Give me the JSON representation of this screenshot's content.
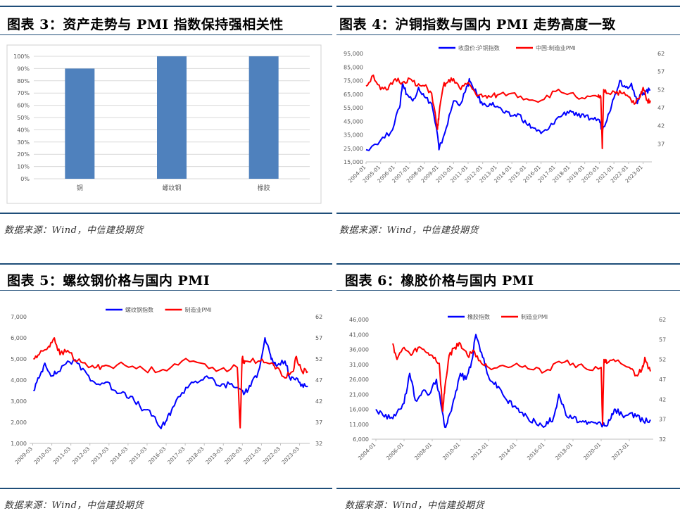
{
  "panels": [
    {
      "title": "图表 3：资产走势与 PMI 指数保持强相关性",
      "source": "数据来源：Wind，中信建投期货"
    },
    {
      "title": "图表 4：沪铜指数与国内 PMI 走势高度一致",
      "source": "数据来源：Wind，中信建投期货"
    },
    {
      "title": "图表 5：螺纹钢价格与国内 PMI",
      "source": "数据来源：Wind，中信建投期货"
    },
    {
      "title": "图表 6：橡胶价格与国内 PMI",
      "source": "数据来源：Wind，中信建投期货"
    }
  ],
  "colors": {
    "bar": "#4f81bd",
    "blue": "#0000ff",
    "red": "#ff0000",
    "rule": "#1f4e79"
  },
  "chart_data": [
    {
      "type": "bar",
      "title": "",
      "categories": [
        "铜",
        "螺纹钢",
        "橡胶"
      ],
      "values": [
        0.9,
        1.0,
        1.0
      ],
      "yticks": [
        "0%",
        "10%",
        "20%",
        "30%",
        "40%",
        "50%",
        "60%",
        "70%",
        "80%",
        "90%",
        "100%"
      ],
      "ylim": [
        0,
        1
      ]
    },
    {
      "type": "line",
      "series": [
        {
          "name": "收盘价:沪铜指数",
          "axis": "left",
          "color": "#0000ff",
          "x": [
            2004.0,
            2005.0,
            2005.7,
            2006.3,
            2006.5,
            2006.8,
            2007.2,
            2007.6,
            2008.0,
            2008.5,
            2008.9,
            2009.0,
            2009.5,
            2010.0,
            2010.5,
            2011.0,
            2011.1,
            2011.6,
            2012.0,
            2012.5,
            2013.0,
            2013.5,
            2014.0,
            2014.5,
            2015.0,
            2015.5,
            2016.0,
            2016.5,
            2017.0,
            2017.5,
            2018.0,
            2018.5,
            2019.0,
            2019.5,
            2020.0,
            2020.2,
            2020.6,
            2021.0,
            2021.4,
            2021.8,
            2022.2,
            2022.6,
            2022.9,
            2023.2,
            2023.5
          ],
          "y": [
            24000,
            31000,
            37000,
            55000,
            73000,
            65000,
            60000,
            70000,
            63000,
            58000,
            35000,
            24000,
            40000,
            60000,
            58000,
            72000,
            75000,
            65000,
            57000,
            58000,
            56000,
            51000,
            49000,
            50000,
            43000,
            40000,
            36000,
            39000,
            46000,
            50000,
            53000,
            49000,
            48000,
            47000,
            46000,
            38000,
            50000,
            62000,
            75000,
            70000,
            73000,
            58000,
            66000,
            67000,
            68000
          ]
        },
        {
          "name": "中国:制造业PMI",
          "axis": "right",
          "color": "#ff0000",
          "x": [
            2004.0,
            2004.5,
            2005.0,
            2005.5,
            2006.0,
            2006.5,
            2007.0,
            2007.5,
            2008.0,
            2008.5,
            2008.9,
            2009.0,
            2009.3,
            2009.6,
            2010.0,
            2010.5,
            2011.0,
            2011.5,
            2012.0,
            2012.5,
            2013.0,
            2014.0,
            2015.0,
            2016.0,
            2017.0,
            2018.0,
            2019.0,
            2019.9,
            2020.1,
            2020.2,
            2020.3,
            2020.6,
            2021.0,
            2021.5,
            2022.0,
            2022.4,
            2022.8,
            2023.0,
            2023.3,
            2023.5
          ],
          "y": [
            53,
            56,
            52,
            52,
            55,
            54,
            55,
            53,
            53,
            51,
            41,
            45,
            53,
            54,
            55,
            52,
            54,
            51,
            50,
            50,
            50.5,
            51,
            49.5,
            49,
            51.5,
            51,
            49.5,
            50,
            50,
            35.7,
            52,
            51,
            51.5,
            51,
            50,
            48,
            50,
            52.6,
            49,
            49
          ]
        }
      ],
      "xticks": [
        "2004-01",
        "2005-01",
        "2006-01",
        "2007-01",
        "2008-01",
        "2009-01",
        "2010-01",
        "2011-01",
        "2012-01",
        "2013-01",
        "2014-01",
        "2015-01",
        "2016-01",
        "2017-01",
        "2018-01",
        "2019-01",
        "2020-01",
        "2021-01",
        "2022-01",
        "2023-01"
      ],
      "yleft_ticks": [
        "15,000",
        "25,000",
        "35,000",
        "45,000",
        "55,000",
        "65,000",
        "75,000",
        "85,000",
        "95,000"
      ],
      "yright_ticks": [
        "37",
        "42",
        "47",
        "52",
        "57",
        "62"
      ],
      "ylim_left": [
        15000,
        95000
      ],
      "ylim_right": [
        32,
        62
      ],
      "xlim": [
        2004.0,
        2023.6
      ]
    },
    {
      "type": "line",
      "series": [
        {
          "name": "螺纹钢指数",
          "axis": "left",
          "color": "#0000ff",
          "x": [
            2009.2,
            2009.5,
            2009.8,
            2010.2,
            2010.5,
            2011.0,
            2011.5,
            2012.0,
            2012.5,
            2013.0,
            2013.5,
            2014.0,
            2014.5,
            2015.0,
            2015.5,
            2015.9,
            2016.2,
            2016.5,
            2017.0,
            2017.5,
            2018.0,
            2018.5,
            2019.0,
            2019.5,
            2020.0,
            2020.3,
            2020.6,
            2021.0,
            2021.35,
            2021.6,
            2021.8,
            2022.0,
            2022.4,
            2022.7,
            2023.0,
            2023.3,
            2023.6
          ],
          "y": [
            3500,
            4100,
            4800,
            4200,
            4400,
            4900,
            4800,
            4300,
            3800,
            3900,
            3500,
            3400,
            3000,
            2600,
            2300,
            1700,
            2100,
            2700,
            3400,
            3900,
            4000,
            4100,
            3700,
            3800,
            3600,
            3400,
            3700,
            4400,
            6000,
            5300,
            4700,
            4700,
            4900,
            4000,
            4100,
            3800,
            3700
          ]
        },
        {
          "name": "制造业PMI",
          "axis": "right",
          "color": "#ff0000",
          "x": [
            2009.2,
            2009.5,
            2010.0,
            2010.3,
            2010.6,
            2011.0,
            2011.5,
            2012.0,
            2012.5,
            2013.0,
            2014.0,
            2015.0,
            2016.0,
            2017.0,
            2018.0,
            2019.0,
            2019.9,
            2020.05,
            2020.15,
            2020.3,
            2021.0,
            2021.5,
            2022.0,
            2022.4,
            2022.8,
            2023.0,
            2023.3,
            2023.6
          ],
          "y": [
            52,
            53,
            55,
            57,
            53,
            54,
            51.5,
            50.5,
            50,
            50.5,
            50.5,
            49.5,
            49.5,
            51.5,
            51,
            49.5,
            50,
            35.7,
            52,
            51.5,
            51.5,
            51,
            50,
            47.5,
            49,
            52.6,
            49,
            49
          ]
        }
      ],
      "xticks": [
        "2009-03",
        "2010-03",
        "2011-03",
        "2012-03",
        "2013-03",
        "2014-03",
        "2015-03",
        "2016-03",
        "2017-03",
        "2018-03",
        "2019-03",
        "2020-03",
        "2021-03",
        "2022-03",
        "2023-03"
      ],
      "legend_names": [
        "螺纹钢指数",
        "制造业PMI"
      ],
      "yleft_ticks": [
        "1,000",
        "2,000",
        "3,000",
        "4,000",
        "5,000",
        "6,000",
        "7,000"
      ],
      "yright_ticks": [
        "32",
        "37",
        "42",
        "47",
        "52",
        "57",
        "62"
      ],
      "ylim_left": [
        1000,
        7000
      ],
      "ylim_right": [
        32,
        62
      ],
      "xlim": [
        2009.0,
        2023.7
      ]
    },
    {
      "type": "line",
      "series": [
        {
          "name": "橡胶指数",
          "axis": "left",
          "color": "#0000ff",
          "x": [
            2004.0,
            2004.5,
            2005.0,
            2005.5,
            2006.0,
            2006.4,
            2006.8,
            2007.3,
            2007.8,
            2008.3,
            2008.6,
            2008.9,
            2009.2,
            2009.6,
            2010.0,
            2010.4,
            2010.8,
            2011.1,
            2011.5,
            2011.9,
            2012.3,
            2012.8,
            2013.3,
            2013.8,
            2014.3,
            2014.8,
            2015.3,
            2015.9,
            2016.3,
            2016.6,
            2017.0,
            2017.5,
            2018.0,
            2018.5,
            2019.0,
            2019.5,
            2020.0,
            2020.3,
            2020.7,
            2021.0,
            2021.5,
            2022.0,
            2022.5,
            2023.0,
            2023.5
          ],
          "y": [
            16000,
            14000,
            13000,
            15000,
            18000,
            28000,
            19000,
            22000,
            21000,
            26000,
            18000,
            10000,
            14000,
            20000,
            28000,
            26000,
            32000,
            41000,
            35000,
            28000,
            25000,
            23000,
            19000,
            17000,
            15000,
            13000,
            12000,
            10000,
            12000,
            13000,
            21000,
            14000,
            13000,
            12000,
            11000,
            11500,
            11000,
            10500,
            13000,
            16000,
            14000,
            14500,
            13500,
            12000,
            12500
          ]
        },
        {
          "name": "制造业PMI",
          "axis": "right",
          "color": "#ff0000",
          "x": [
            2005.2,
            2005.5,
            2006.0,
            2006.5,
            2007.0,
            2007.5,
            2008.0,
            2008.5,
            2008.75,
            2008.9,
            2009.2,
            2009.6,
            2010.0,
            2010.5,
            2011.0,
            2011.5,
            2012.0,
            2013.0,
            2014.0,
            2015.0,
            2016.0,
            2017.0,
            2018.0,
            2019.0,
            2020.0,
            2020.1,
            2020.2,
            2020.4,
            2021.0,
            2022.0,
            2022.5,
            2022.9,
            2023.1,
            2023.5
          ],
          "y": [
            56,
            52,
            55,
            53,
            55,
            54,
            53,
            51,
            39,
            45,
            53,
            55,
            56,
            53,
            54,
            51,
            50,
            50.5,
            51,
            49.5,
            49,
            51.5,
            51,
            49.5,
            50,
            35.7,
            52,
            51,
            51.5,
            50,
            48,
            49.5,
            52.5,
            49
          ]
        }
      ],
      "xticks": [
        "2004-01",
        "2006-01",
        "2008-01",
        "2010-01",
        "2012-01",
        "2014-01",
        "2016-01",
        "2018-01",
        "2020-01",
        "2022-01"
      ],
      "yleft_ticks": [
        "6,000",
        "11,000",
        "16,000",
        "21,000",
        "26,000",
        "31,000",
        "36,000",
        "41,000",
        "46,000"
      ],
      "yright_ticks": [
        "32",
        "37",
        "42",
        "47",
        "52",
        "57",
        "62"
      ],
      "ylim_left": [
        6000,
        46000
      ],
      "ylim_right": [
        32,
        62
      ],
      "xlim": [
        2003.7,
        2023.7
      ]
    }
  ]
}
